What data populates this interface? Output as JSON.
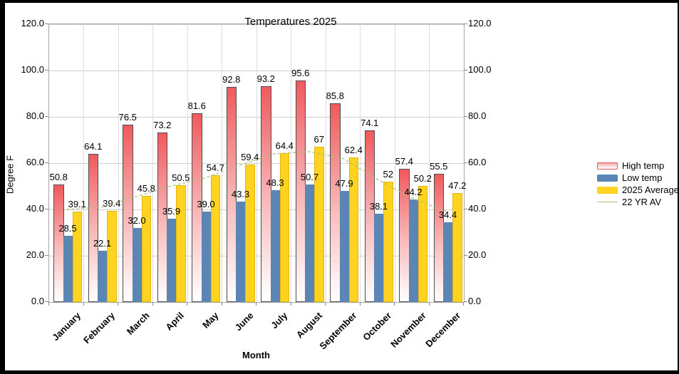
{
  "title": "Temperatures 2025",
  "y_axis": {
    "label": "Degree F",
    "ticks": [
      "0.0",
      "20.0",
      "40.0",
      "60.0",
      "80.0",
      "100.0",
      "120.0"
    ]
  },
  "x_axis": {
    "label": "Month"
  },
  "colors": {
    "high": "#ef5a5d",
    "low": "#5b85b5",
    "avg": "#ffd320",
    "line_22yr": "#a9c173"
  },
  "chart_data": {
    "type": "bar",
    "title": "Temperatures 2025",
    "xlabel": "Month",
    "ylabel": "Degree F",
    "ylim": [
      0,
      120
    ],
    "y_tick_step": 20,
    "grid": true,
    "legend_position": "right",
    "categories": [
      "January",
      "February",
      "March",
      "April",
      "May",
      "June",
      "July",
      "August",
      "September",
      "October",
      "November",
      "December"
    ],
    "series": [
      {
        "name": "High temp",
        "type": "bar",
        "values": [
          50.8,
          64.1,
          76.5,
          73.2,
          81.6,
          92.8,
          93.2,
          95.6,
          85.8,
          74.1,
          57.4,
          55.5
        ],
        "labels": [
          "50.8",
          "64.1",
          "76.5",
          "73.2",
          "81.6",
          "92.8",
          "93.2",
          "95.6",
          "85.8",
          "74.1",
          "57.4",
          "55.5"
        ]
      },
      {
        "name": "Low temp",
        "type": "bar",
        "values": [
          28.5,
          22.1,
          32.0,
          35.9,
          39.0,
          43.3,
          48.3,
          50.7,
          47.9,
          38.1,
          44.2,
          34.4
        ],
        "labels": [
          "28.5",
          "22.1",
          "32.0",
          "35.9",
          "39.0",
          "43.3",
          "48.3",
          "50.7",
          "47.9",
          "38.1",
          "44.2",
          "34.4"
        ]
      },
      {
        "name": "2025 Average",
        "type": "bar",
        "values": [
          39.1,
          39.4,
          45.8,
          50.5,
          54.7,
          59.4,
          64.4,
          67,
          62.4,
          52,
          50.2,
          47.2
        ],
        "labels": [
          "39.1",
          "39.4",
          "45.8",
          "50.5",
          "54.7",
          "59.4",
          "64.4",
          "67",
          "62.4",
          "52",
          "50.2",
          "47.2"
        ]
      },
      {
        "name": "22 YR AV",
        "type": "line",
        "values": [
          40,
          41,
          45.5,
          50,
          53.5,
          59,
          64,
          65,
          62,
          53,
          45,
          39
        ],
        "values_note": "estimated from unlabeled line position"
      }
    ]
  }
}
